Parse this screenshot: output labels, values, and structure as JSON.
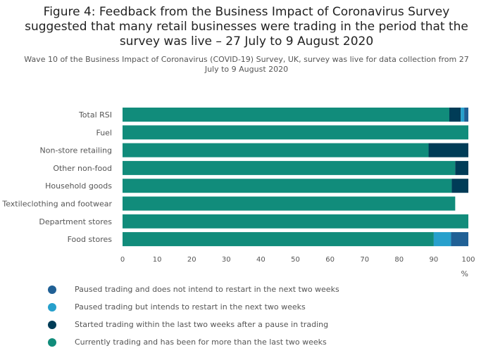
{
  "header": {
    "title_lines": [
      "Figure 4: Feedback from the Business Impact of Coronavirus Survey",
      "suggested that many retail businesses were trading in the period that the",
      "survey was live – 27 July to 9 August 2020"
    ],
    "subtitle_lines": [
      "Wave 10 of the Business Impact of Coronavirus (COVID-19) Survey, UK, survey was live for data collection from 27",
      "July to 9 August 2020"
    ]
  },
  "chart_data": {
    "type": "bar",
    "orientation": "horizontal",
    "stacked": true,
    "categories": [
      "Total RSI",
      "Fuel",
      "Non-store retailing",
      "Other non-food",
      "Household goods",
      "Textileclothing and footwear",
      "Department stores",
      "Food stores"
    ],
    "series": [
      {
        "name": "Currently trading and has been for more than the last two weeks",
        "color": "#118c7b",
        "values": [
          94.5,
          100,
          88.5,
          96.2,
          95.2,
          96.2,
          100,
          90
        ]
      },
      {
        "name": "Started trading within the last two weeks after a pause in trading",
        "color": "#003c57",
        "values": [
          3.3,
          0,
          11.5,
          3.8,
          4.8,
          0,
          0,
          0
        ]
      },
      {
        "name": "Paused trading but intends to restart in the next two weeks",
        "color": "#27a0cc",
        "values": [
          1.0,
          0,
          0,
          0,
          0,
          0,
          0,
          5
        ]
      },
      {
        "name": "Paused trading and does not intend to restart in the next two weeks",
        "color": "#206095",
        "values": [
          1.2,
          0,
          0,
          0,
          0,
          0,
          0,
          5
        ]
      }
    ],
    "xlim": [
      0,
      100
    ],
    "xticks": [
      "0",
      "10",
      "20",
      "30",
      "40",
      "50",
      "60",
      "70",
      "80",
      "90",
      "100"
    ],
    "xlabel": "%",
    "ylabel": "",
    "grid": false,
    "legend": {
      "placement": "bottom",
      "order": [
        "Paused trading and does not intend to restart in the next two weeks",
        "Paused trading but intends to restart in the next two weeks",
        "Started trading within the last two weeks after a pause in trading",
        "Currently trading and has been for more than the last two weeks"
      ]
    }
  }
}
